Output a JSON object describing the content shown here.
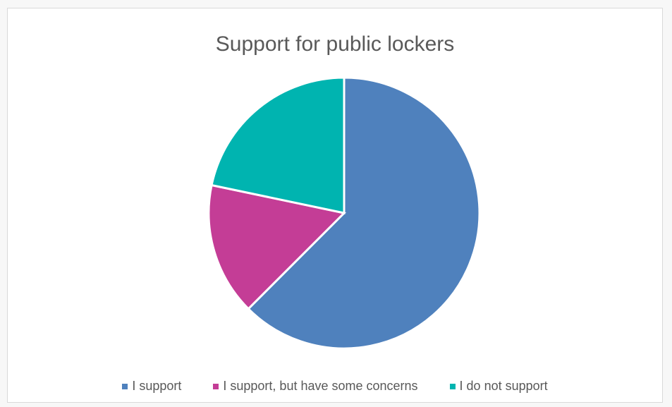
{
  "chart_data": {
    "type": "pie",
    "title": "Support for public lockers",
    "categories": [
      "I support",
      "I support, but have some concerns",
      "I do not support"
    ],
    "values": [
      62.5,
      15.8,
      21.7
    ],
    "colors": [
      "#4f81bd",
      "#c43d96",
      "#00b4b0"
    ],
    "legend_position": "bottom"
  }
}
